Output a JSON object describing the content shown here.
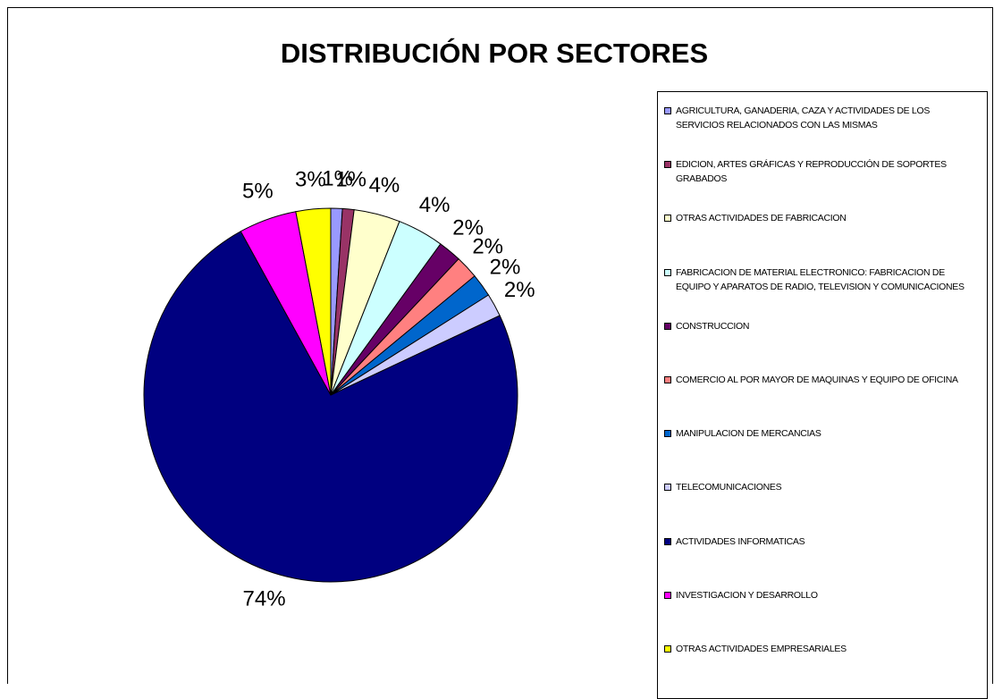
{
  "chart_data": {
    "type": "pie",
    "title": "DISTRIBUCIÓN POR SECTORES",
    "categories": [
      "AGRICULTURA, GANADERIA, CAZA Y ACTIVIDADES DE LOS SERVICIOS RELACIONADOS CON LAS MISMAS",
      "EDICION, ARTES GRÁFICAS Y REPRODUCCIÓN DE SOPORTES GRABADOS",
      "OTRAS ACTIVIDADES DE FABRICACION",
      "FABRICACION DE MATERIAL ELECTRONICO: FABRICACION DE EQUIPO Y APARATOS DE RADIO, TELEVISION Y COMUNICACIONES",
      "CONSTRUCCION",
      "COMERCIO AL POR MAYOR DE MAQUINAS Y EQUIPO DE OFICINA",
      "MANIPULACION DE MERCANCIAS",
      "TELECOMUNICACIONES",
      "ACTIVIDADES INFORMATICAS",
      "INVESTIGACION Y DESARROLLO",
      "OTRAS ACTIVIDADES EMPRESARIALES"
    ],
    "values": [
      1,
      1,
      4,
      4,
      2,
      2,
      2,
      2,
      74,
      5,
      3
    ],
    "value_labels": [
      "1%",
      "1%",
      "4%",
      "4%",
      "2%",
      "2%",
      "2%",
      "2%",
      "74%",
      "5%",
      "3%"
    ],
    "colors": [
      "#9999ff",
      "#993366",
      "#ffffcc",
      "#ccffff",
      "#660066",
      "#ff8080",
      "#0066cc",
      "#ccccff",
      "#000080",
      "#ff00ff",
      "#ffff00"
    ],
    "legend": "right"
  }
}
